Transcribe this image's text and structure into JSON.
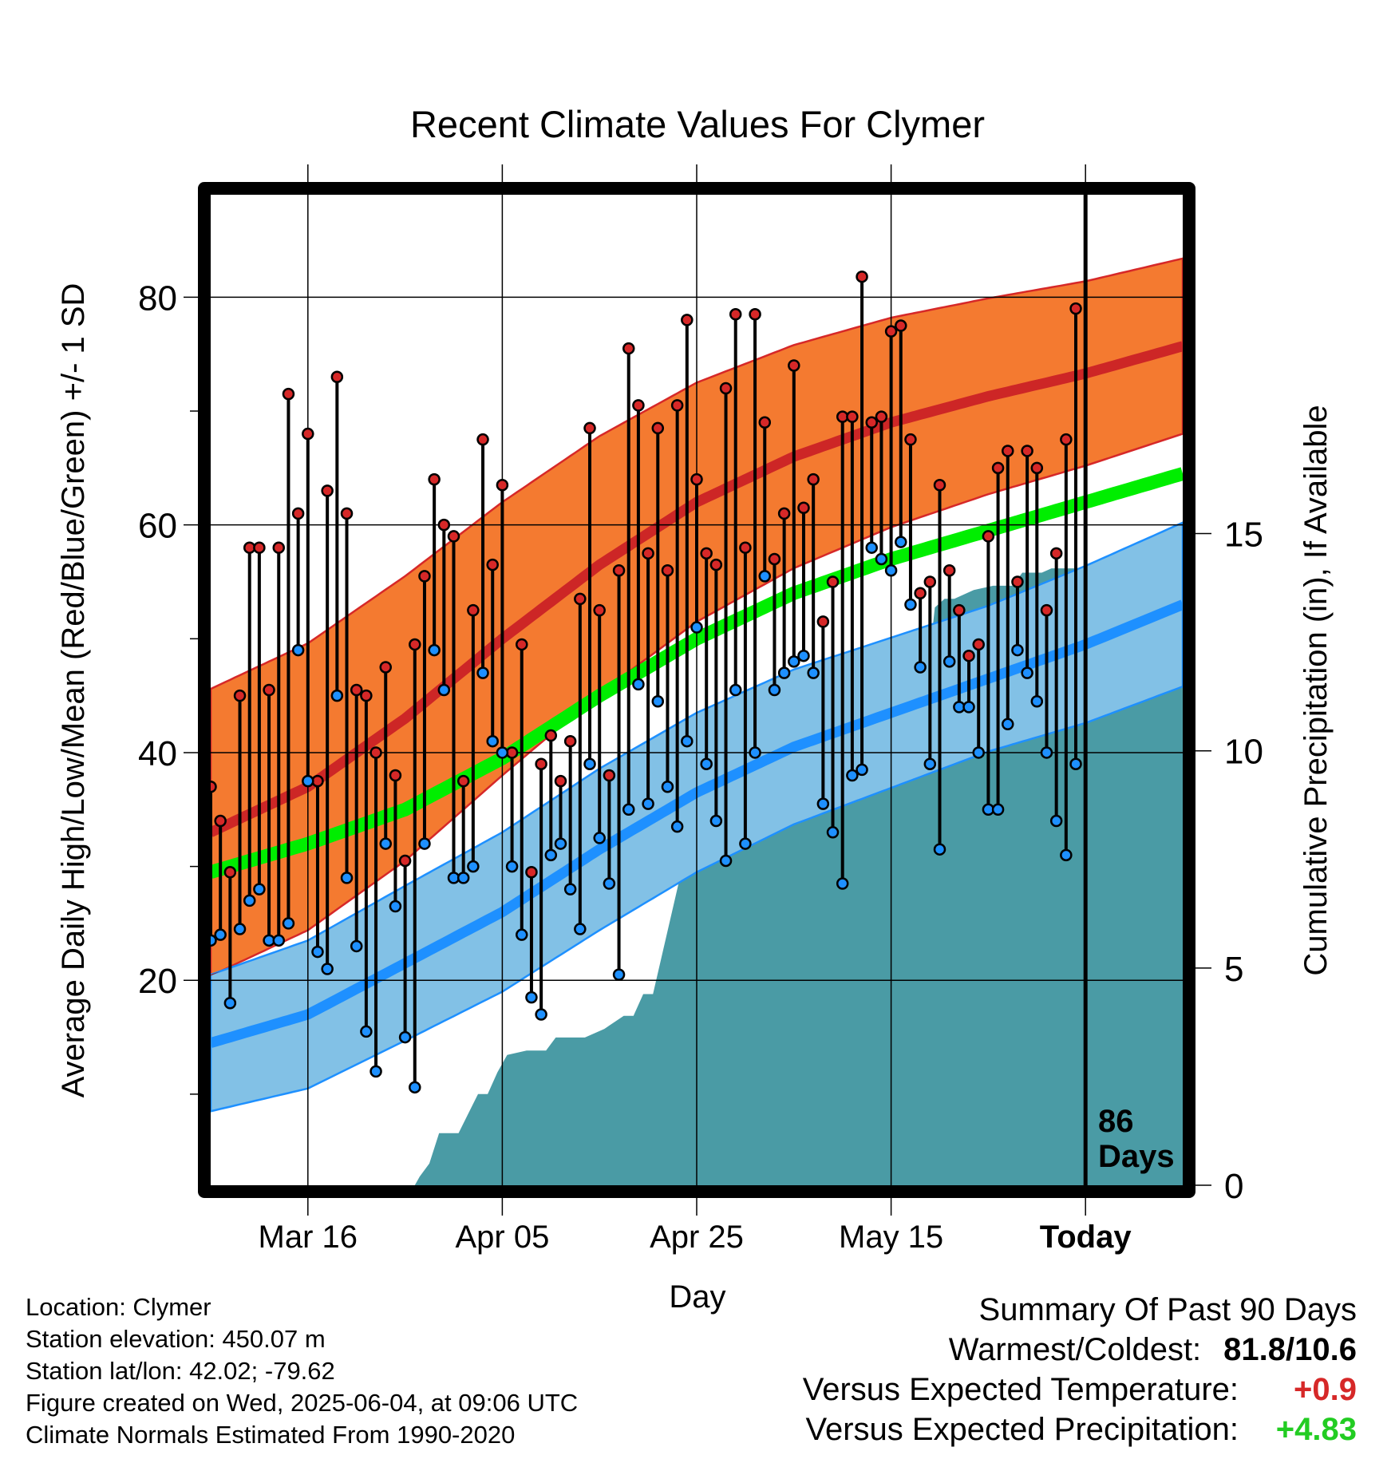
{
  "chart_data": {
    "type": "line",
    "title": "Recent Climate Values For Clymer",
    "xlabel": "Day",
    "ylabel_left": "Average Daily High/Low/Mean (Red/Blue/Green) +/- 1 SD",
    "ylabel_right": "Cumulative Precipitation (in), If Available",
    "x_ticks": [
      {
        "day": 10,
        "label": "Mar 16"
      },
      {
        "day": 30,
        "label": "Apr 05"
      },
      {
        "day": 50,
        "label": "Apr 25"
      },
      {
        "day": 70,
        "label": "May 15"
      },
      {
        "day": 90,
        "label": "Today"
      }
    ],
    "x_range": [
      0,
      100
    ],
    "today_day": 90,
    "today_label": [
      "86",
      "Days"
    ],
    "ylim_left": [
      2,
      89
    ],
    "ylim_right": [
      0,
      22.8
    ],
    "y_ticks_left": [
      {
        "value": 20,
        "label": "20"
      },
      {
        "value": 40,
        "label": "40"
      },
      {
        "value": 60,
        "label": "60"
      },
      {
        "value": 80,
        "label": "80"
      }
    ],
    "y_minor_left": [
      10,
      30,
      50,
      70
    ],
    "y_ticks_right": [
      {
        "value": 0,
        "label": "0"
      },
      {
        "value": 5,
        "label": "5"
      },
      {
        "value": 10,
        "label": "10"
      },
      {
        "value": 15,
        "label": "15"
      }
    ],
    "grid": true,
    "colors": {
      "high_band": "#f47a30",
      "high_band_edge": "#d62828",
      "high_mean": "#cd2626",
      "low_band": "#82c1e6",
      "low_band_edge": "#1e90ff",
      "low_mean": "#1e90ff",
      "mean_normal": "#00ee00",
      "overlap": "#9b1515",
      "precip": "#4a9ba5",
      "high_dot": "#d62828",
      "low_dot": "#1e90ff"
    },
    "normals": {
      "days": [
        0,
        10,
        20,
        30,
        40,
        50,
        60,
        70,
        80,
        90,
        100
      ],
      "high_mean": [
        33.0,
        37.0,
        43.0,
        50.0,
        56.5,
        62.0,
        66.0,
        69.0,
        71.3,
        73.3,
        75.7
      ],
      "high_sd": [
        12.6,
        12.6,
        12.5,
        12.0,
        11.3,
        10.5,
        9.8,
        9.2,
        8.6,
        8.1,
        7.7
      ],
      "low_mean": [
        14.5,
        17.0,
        21.5,
        26.0,
        31.5,
        36.5,
        40.5,
        43.5,
        46.5,
        49.5,
        53.0
      ],
      "low_sd": [
        6.0,
        6.5,
        6.8,
        7.0,
        7.1,
        7.0,
        6.8,
        6.6,
        6.4,
        6.9,
        7.2
      ],
      "mean": [
        29.5,
        32.0,
        35.0,
        39.5,
        45.0,
        50.0,
        54.0,
        57.0,
        59.5,
        62.0,
        64.5
      ]
    },
    "series": [
      {
        "name": "High",
        "days": [
          0,
          1,
          2,
          3,
          4,
          5,
          6,
          7,
          8,
          9,
          10,
          11,
          12,
          13,
          14,
          15,
          16,
          17,
          18,
          19,
          20,
          21,
          22,
          23,
          24,
          25,
          26,
          27,
          28,
          29,
          30,
          31,
          32,
          33,
          34,
          35,
          36,
          37,
          38,
          39,
          40,
          41,
          42,
          43,
          44,
          45,
          46,
          47,
          48,
          49,
          50,
          51,
          52,
          53,
          54,
          55,
          56,
          57,
          58,
          59,
          60,
          61,
          62,
          63,
          64,
          65,
          66,
          67,
          68,
          69,
          70,
          71,
          72,
          73,
          74,
          75,
          76,
          77,
          78,
          79,
          80,
          81,
          82,
          83,
          84,
          85,
          86,
          87,
          88,
          89
        ],
        "values": [
          37.0,
          34.0,
          29.5,
          45.0,
          58.0,
          58.0,
          45.5,
          58.0,
          71.5,
          61.0,
          68.0,
          37.5,
          63.0,
          73.0,
          61.0,
          45.5,
          45.0,
          40.0,
          47.5,
          38.0,
          30.5,
          49.5,
          55.5,
          64.0,
          60.0,
          59.0,
          37.5,
          52.5,
          67.5,
          56.5,
          63.5,
          40.0,
          49.5,
          29.5,
          39.0,
          41.5,
          37.5,
          41.0,
          53.5,
          68.5,
          52.5,
          38.0,
          56.0,
          75.5,
          70.5,
          57.5,
          68.5,
          56.0,
          70.5,
          78.0,
          64.0,
          57.5,
          56.5,
          72.0,
          78.5,
          58.0,
          78.5,
          69.0,
          57.0,
          61.0,
          74.0,
          61.5,
          64.0,
          51.5,
          55.0,
          69.5,
          69.5,
          81.8,
          69.0,
          69.5,
          77.0,
          77.5,
          67.5,
          54.0,
          55.0,
          63.5,
          56.0,
          52.5,
          48.5,
          49.5,
          59.0,
          65.0,
          66.5,
          55.0,
          66.5,
          65.0,
          52.5,
          57.5,
          67.5,
          79.0
        ]
      },
      {
        "name": "Low",
        "days": [
          0,
          1,
          2,
          3,
          4,
          5,
          6,
          7,
          8,
          9,
          10,
          11,
          12,
          13,
          14,
          15,
          16,
          17,
          18,
          19,
          20,
          21,
          22,
          23,
          24,
          25,
          26,
          27,
          28,
          29,
          30,
          31,
          32,
          33,
          34,
          35,
          36,
          37,
          38,
          39,
          40,
          41,
          42,
          43,
          44,
          45,
          46,
          47,
          48,
          49,
          50,
          51,
          52,
          53,
          54,
          55,
          56,
          57,
          58,
          59,
          60,
          61,
          62,
          63,
          64,
          65,
          66,
          67,
          68,
          69,
          70,
          71,
          72,
          73,
          74,
          75,
          76,
          77,
          78,
          79,
          80,
          81,
          82,
          83,
          84,
          85,
          86,
          87,
          88,
          89
        ],
        "values": [
          23.5,
          24.0,
          18.0,
          24.5,
          27.0,
          28.0,
          23.5,
          23.5,
          25.0,
          49.0,
          37.5,
          22.5,
          21.0,
          45.0,
          29.0,
          23.0,
          15.5,
          12.0,
          32.0,
          26.5,
          15.0,
          10.6,
          32.0,
          49.0,
          45.5,
          29.0,
          29.0,
          30.0,
          47.0,
          41.0,
          40.0,
          30.0,
          24.0,
          18.5,
          17.0,
          31.0,
          32.0,
          28.0,
          24.5,
          39.0,
          32.5,
          28.5,
          20.5,
          35.0,
          46.0,
          35.5,
          44.5,
          37.0,
          33.5,
          41.0,
          51.0,
          39.0,
          34.0,
          30.5,
          45.5,
          32.0,
          40.0,
          55.5,
          45.5,
          47.0,
          48.0,
          48.5,
          47.0,
          35.5,
          33.0,
          28.5,
          38.0,
          38.5,
          58.0,
          57.0,
          56.0,
          58.5,
          53.0,
          47.5,
          39.0,
          31.5,
          48.0,
          44.0,
          44.0,
          40.0,
          35.0,
          35.0,
          42.5,
          49.0,
          47.0,
          44.5,
          40.0,
          34.0,
          31.0,
          39.0
        ]
      }
    ],
    "precip_cumulative": {
      "days": [
        0,
        21,
        21.5,
        22.5,
        23.5,
        25.5,
        27.5,
        28.5,
        29.5,
        30.5,
        32.5,
        34.5,
        35.5,
        38.5,
        40.5,
        42.5,
        43.5,
        44.5,
        45.5,
        48.5,
        49.5,
        50.5,
        53.5,
        54.5,
        55.5,
        56.5,
        57.5,
        59.5,
        60.5,
        66.5,
        67.5,
        68.5,
        70.5,
        71.5,
        73.5,
        74.5,
        75.5,
        76.5,
        78.5,
        80.5,
        82.5,
        83.5,
        85.5,
        86.5,
        89,
        90,
        100
      ],
      "values": [
        0,
        0,
        0.2,
        0.5,
        1.2,
        1.2,
        2.1,
        2.1,
        2.6,
        3.0,
        3.1,
        3.1,
        3.4,
        3.4,
        3.6,
        3.9,
        3.9,
        4.4,
        4.4,
        7.3,
        7.3,
        7.9,
        7.9,
        8.3,
        9.1,
        9.5,
        9.7,
        9.7,
        9.7,
        9.7,
        10.0,
        10.9,
        10.9,
        11.2,
        11.2,
        13.3,
        13.5,
        13.5,
        13.7,
        13.8,
        13.8,
        14.1,
        14.1,
        14.2,
        14.2,
        14.2,
        14.2
      ]
    }
  },
  "footer": {
    "location": "Location: Clymer",
    "elevation": "Station elevation: 450.07 m",
    "latlon": "Station lat/lon: 42.02; -79.62",
    "created": "Figure created on Wed, 2025-06-04, at 09:06 UTC",
    "normals": "Climate Normals Estimated From 1990-2020"
  },
  "summary": {
    "title": "Summary Of Past 90 Days",
    "warmest_label": "Warmest/Coldest:",
    "warmest_value": "81.8/10.6",
    "temp_label": "Versus Expected Temperature:",
    "temp_value": "+0.9",
    "temp_color": "#d62828",
    "precip_label": "Versus Expected Precipitation:",
    "precip_value": "+4.83",
    "precip_color": "#22cc22"
  }
}
